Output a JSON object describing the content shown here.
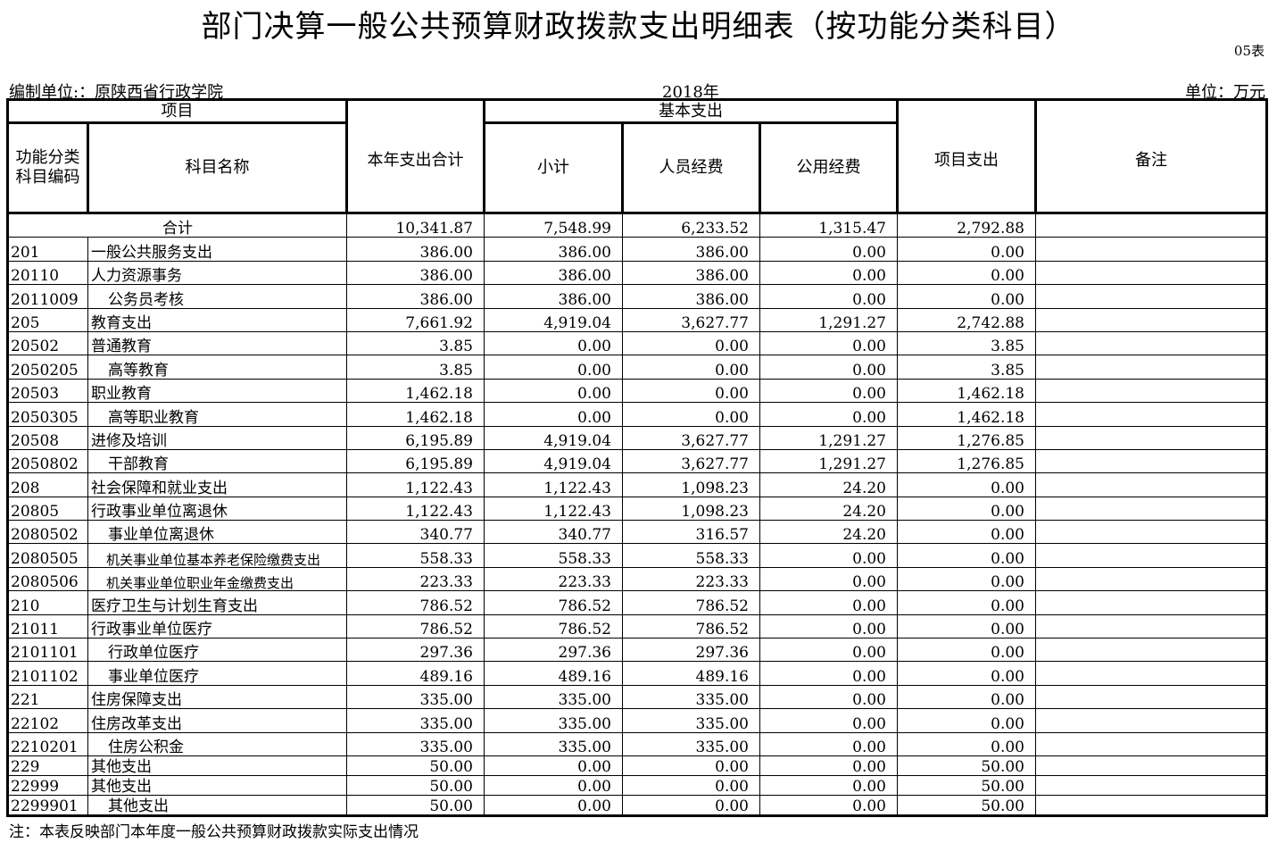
{
  "title": "部门决算一般公共预算财政拨款支出明细表（按功能分类科目）",
  "table_no": "05表",
  "org": "编制单位:：原陕西省行政学院",
  "year": "2018年",
  "unit": "单位：万元",
  "headers": {
    "item": "项目",
    "code": "功能分类科目编码",
    "name": "科目名称",
    "total": "本年支出合计",
    "basic": "基本支出",
    "subtotal": "小计",
    "personnel": "人员经费",
    "public": "公用经费",
    "project": "项目支出",
    "remark": "备注"
  },
  "total_row": {
    "label": "合计",
    "total": "10,341.87",
    "subtotal": "7,548.99",
    "personnel": "6,233.52",
    "public": "1,315.47",
    "project": "2,792.88"
  },
  "rows": [
    {
      "code": "201",
      "name": "一般公共服务支出",
      "lvl": 1,
      "v": [
        "386.00",
        "386.00",
        "386.00",
        "0.00",
        "0.00"
      ]
    },
    {
      "code": "20110",
      "name": "人力资源事务",
      "lvl": 1,
      "v": [
        "386.00",
        "386.00",
        "386.00",
        "0.00",
        "0.00"
      ]
    },
    {
      "code": "2011009",
      "name": "公务员考核",
      "lvl": 2,
      "v": [
        "386.00",
        "386.00",
        "386.00",
        "0.00",
        "0.00"
      ]
    },
    {
      "code": "205",
      "name": "教育支出",
      "lvl": 1,
      "v": [
        "7,661.92",
        "4,919.04",
        "3,627.77",
        "1,291.27",
        "2,742.88"
      ]
    },
    {
      "code": "20502",
      "name": "普通教育",
      "lvl": 1,
      "v": [
        "3.85",
        "0.00",
        "0.00",
        "0.00",
        "3.85"
      ]
    },
    {
      "code": "2050205",
      "name": "高等教育",
      "lvl": 2,
      "v": [
        "3.85",
        "0.00",
        "0.00",
        "0.00",
        "3.85"
      ]
    },
    {
      "code": "20503",
      "name": "职业教育",
      "lvl": 1,
      "v": [
        "1,462.18",
        "0.00",
        "0.00",
        "0.00",
        "1,462.18"
      ]
    },
    {
      "code": "2050305",
      "name": "高等职业教育",
      "lvl": 2,
      "v": [
        "1,462.18",
        "0.00",
        "0.00",
        "0.00",
        "1,462.18"
      ]
    },
    {
      "code": "20508",
      "name": "进修及培训",
      "lvl": 1,
      "v": [
        "6,195.89",
        "4,919.04",
        "3,627.77",
        "1,291.27",
        "1,276.85"
      ]
    },
    {
      "code": "2050802",
      "name": "干部教育",
      "lvl": 2,
      "v": [
        "6,195.89",
        "4,919.04",
        "3,627.77",
        "1,291.27",
        "1,276.85"
      ]
    },
    {
      "code": "208",
      "name": "社会保障和就业支出",
      "lvl": 1,
      "v": [
        "1,122.43",
        "1,122.43",
        "1,098.23",
        "24.20",
        "0.00"
      ]
    },
    {
      "code": "20805",
      "name": "行政事业单位离退休",
      "lvl": 1,
      "v": [
        "1,122.43",
        "1,122.43",
        "1,098.23",
        "24.20",
        "0.00"
      ]
    },
    {
      "code": "2080502",
      "name": "事业单位离退休",
      "lvl": 2,
      "v": [
        "340.77",
        "340.77",
        "316.57",
        "24.20",
        "0.00"
      ]
    },
    {
      "code": "2080505",
      "name": "机关事业单位基本养老保险缴费支出",
      "lvl": 3,
      "v": [
        "558.33",
        "558.33",
        "558.33",
        "0.00",
        "0.00"
      ]
    },
    {
      "code": "2080506",
      "name": "机关事业单位职业年金缴费支出",
      "lvl": 3,
      "v": [
        "223.33",
        "223.33",
        "223.33",
        "0.00",
        "0.00"
      ]
    },
    {
      "code": "210",
      "name": "医疗卫生与计划生育支出",
      "lvl": 1,
      "v": [
        "786.52",
        "786.52",
        "786.52",
        "0.00",
        "0.00"
      ]
    },
    {
      "code": "21011",
      "name": "行政事业单位医疗",
      "lvl": 1,
      "v": [
        "786.52",
        "786.52",
        "786.52",
        "0.00",
        "0.00"
      ]
    },
    {
      "code": "2101101",
      "name": "行政单位医疗",
      "lvl": 2,
      "v": [
        "297.36",
        "297.36",
        "297.36",
        "0.00",
        "0.00"
      ]
    },
    {
      "code": "2101102",
      "name": "事业单位医疗",
      "lvl": 2,
      "v": [
        "489.16",
        "489.16",
        "489.16",
        "0.00",
        "0.00"
      ]
    },
    {
      "code": "221",
      "name": "住房保障支出",
      "lvl": 1,
      "v": [
        "335.00",
        "335.00",
        "335.00",
        "0.00",
        "0.00"
      ]
    },
    {
      "code": "22102",
      "name": "住房改革支出",
      "lvl": 1,
      "v": [
        "335.00",
        "335.00",
        "335.00",
        "0.00",
        "0.00"
      ]
    },
    {
      "code": "2210201",
      "name": "住房公积金",
      "lvl": 2,
      "v": [
        "335.00",
        "335.00",
        "335.00",
        "0.00",
        "0.00"
      ]
    },
    {
      "code": "229",
      "name": "其他支出",
      "lvl": 1,
      "v": [
        "50.00",
        "0.00",
        "0.00",
        "0.00",
        "50.00"
      ]
    },
    {
      "code": "22999",
      "name": "其他支出",
      "lvl": 1,
      "v": [
        "50.00",
        "0.00",
        "0.00",
        "0.00",
        "50.00"
      ]
    },
    {
      "code": "2299901",
      "name": "其他支出",
      "lvl": 2,
      "v": [
        "50.00",
        "0.00",
        "0.00",
        "0.00",
        "50.00"
      ]
    }
  ],
  "note": "注：本表反映部门本年度一般公共预算财政拨款实际支出情况"
}
